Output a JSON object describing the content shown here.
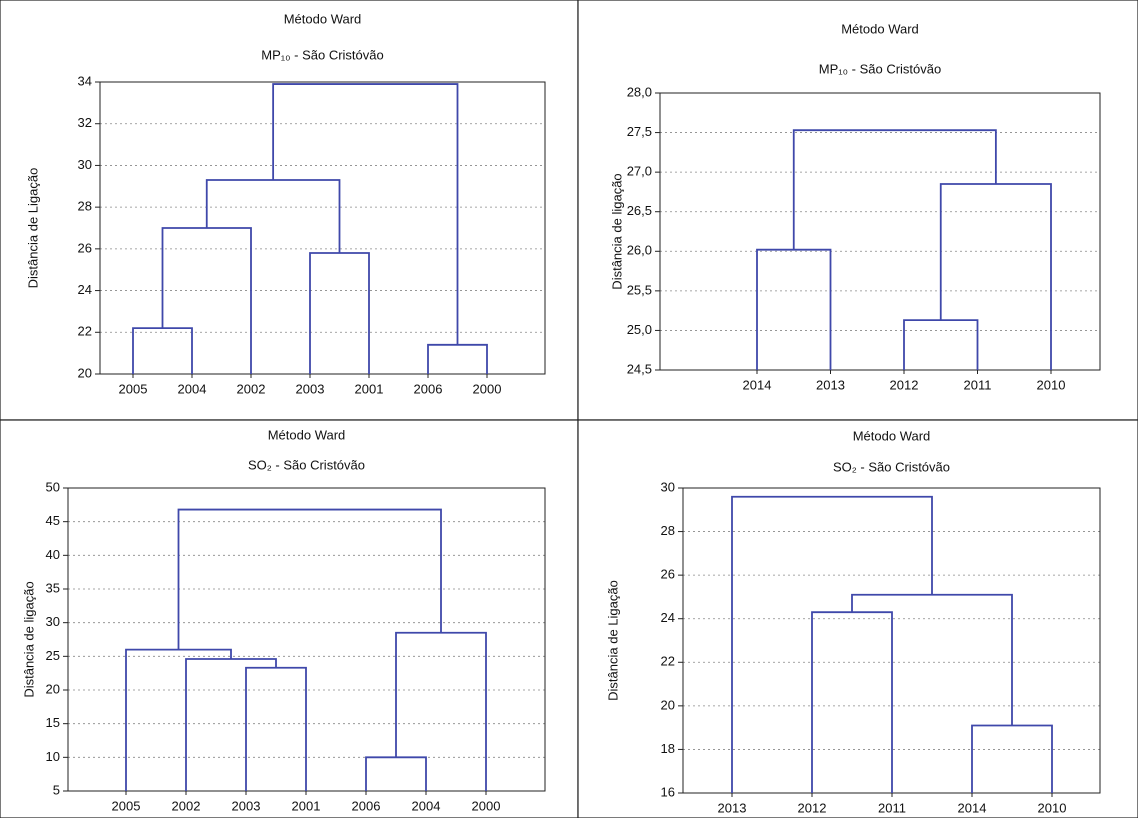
{
  "chart_data": [
    {
      "type": "dendrogram",
      "title": "Método Ward",
      "subtitle": "MP₁₀ - São Cristóvão",
      "ylabel": "Distância de Ligação",
      "categories": [
        "2005",
        "2004",
        "2002",
        "2003",
        "2001",
        "2006",
        "2000"
      ],
      "merges": [
        {
          "children": [
            0,
            1
          ],
          "height": 22.2
        },
        {
          "children": [
            5,
            6
          ],
          "height": 21.4
        },
        {
          "children": [
            7,
            2
          ],
          "height": 27.0
        },
        {
          "children": [
            3,
            4
          ],
          "height": 25.8
        },
        {
          "children": [
            9,
            10
          ],
          "height": 29.3
        },
        {
          "children": [
            11,
            8
          ],
          "height": 33.9
        }
      ],
      "ylim": [
        20,
        34
      ],
      "yticks": [
        20,
        22,
        24,
        26,
        28,
        30,
        32,
        34
      ],
      "grid": true,
      "color": "#3f48aa"
    },
    {
      "type": "dendrogram",
      "title": "Método Ward",
      "subtitle": "MP₁₀ - São Cristóvão",
      "ylabel": "Distância de ligação",
      "categories": [
        "2014",
        "2013",
        "2012",
        "2011",
        "2010"
      ],
      "merges": [
        {
          "children": [
            0,
            1
          ],
          "height": 26.02
        },
        {
          "children": [
            2,
            3
          ],
          "height": 25.13
        },
        {
          "children": [
            6,
            4
          ],
          "height": 26.85
        },
        {
          "children": [
            5,
            7
          ],
          "height": 27.53
        }
      ],
      "ylim": [
        24.5,
        28
      ],
      "yticks": [
        {
          "value": 24.5,
          "label": "24,5"
        },
        {
          "value": 25,
          "label": "25,0"
        },
        {
          "value": 25.5,
          "label": "25,5"
        },
        {
          "value": 26,
          "label": "26,0"
        },
        {
          "value": 26.5,
          "label": "26,5"
        },
        {
          "value": 27,
          "label": "27,0"
        },
        {
          "value": 27.5,
          "label": "27,5"
        },
        {
          "value": 28,
          "label": "28,0"
        }
      ],
      "grid": true,
      "color": "#3f48aa"
    },
    {
      "type": "dendrogram",
      "title": "Método Ward",
      "subtitle": "SO₂ - São Cristóvão",
      "ylabel": "Distância de ligação",
      "categories": [
        "2005",
        "2002",
        "2003",
        "2001",
        "2006",
        "2004",
        "2000"
      ],
      "merges": [
        {
          "children": [
            2,
            3
          ],
          "height": 23.3
        },
        {
          "children": [
            1,
            7
          ],
          "height": 24.6
        },
        {
          "children": [
            0,
            8
          ],
          "height": 26.0
        },
        {
          "children": [
            4,
            5
          ],
          "height": 10.0
        },
        {
          "children": [
            10,
            6
          ],
          "height": 28.5
        },
        {
          "children": [
            9,
            11
          ],
          "height": 46.8
        }
      ],
      "ylim": [
        5,
        50
      ],
      "yticks": [
        5,
        10,
        15,
        20,
        25,
        30,
        35,
        40,
        45,
        50
      ],
      "grid": true,
      "color": "#3f48aa"
    },
    {
      "type": "dendrogram",
      "title": "Método Ward",
      "subtitle": "SO₂ - São Cristóvão",
      "ylabel": "Distância de Ligação",
      "categories": [
        "2013",
        "2012",
        "2011",
        "2014",
        "2010"
      ],
      "merges": [
        {
          "children": [
            1,
            2
          ],
          "height": 24.3
        },
        {
          "children": [
            3,
            4
          ],
          "height": 19.1
        },
        {
          "children": [
            5,
            6
          ],
          "height": 25.1
        },
        {
          "children": [
            0,
            7
          ],
          "height": 29.6
        }
      ],
      "ylim": [
        16,
        30
      ],
      "yticks": [
        16,
        18,
        20,
        22,
        24,
        26,
        28,
        30
      ],
      "grid": true,
      "color": "#3f48aa"
    }
  ]
}
